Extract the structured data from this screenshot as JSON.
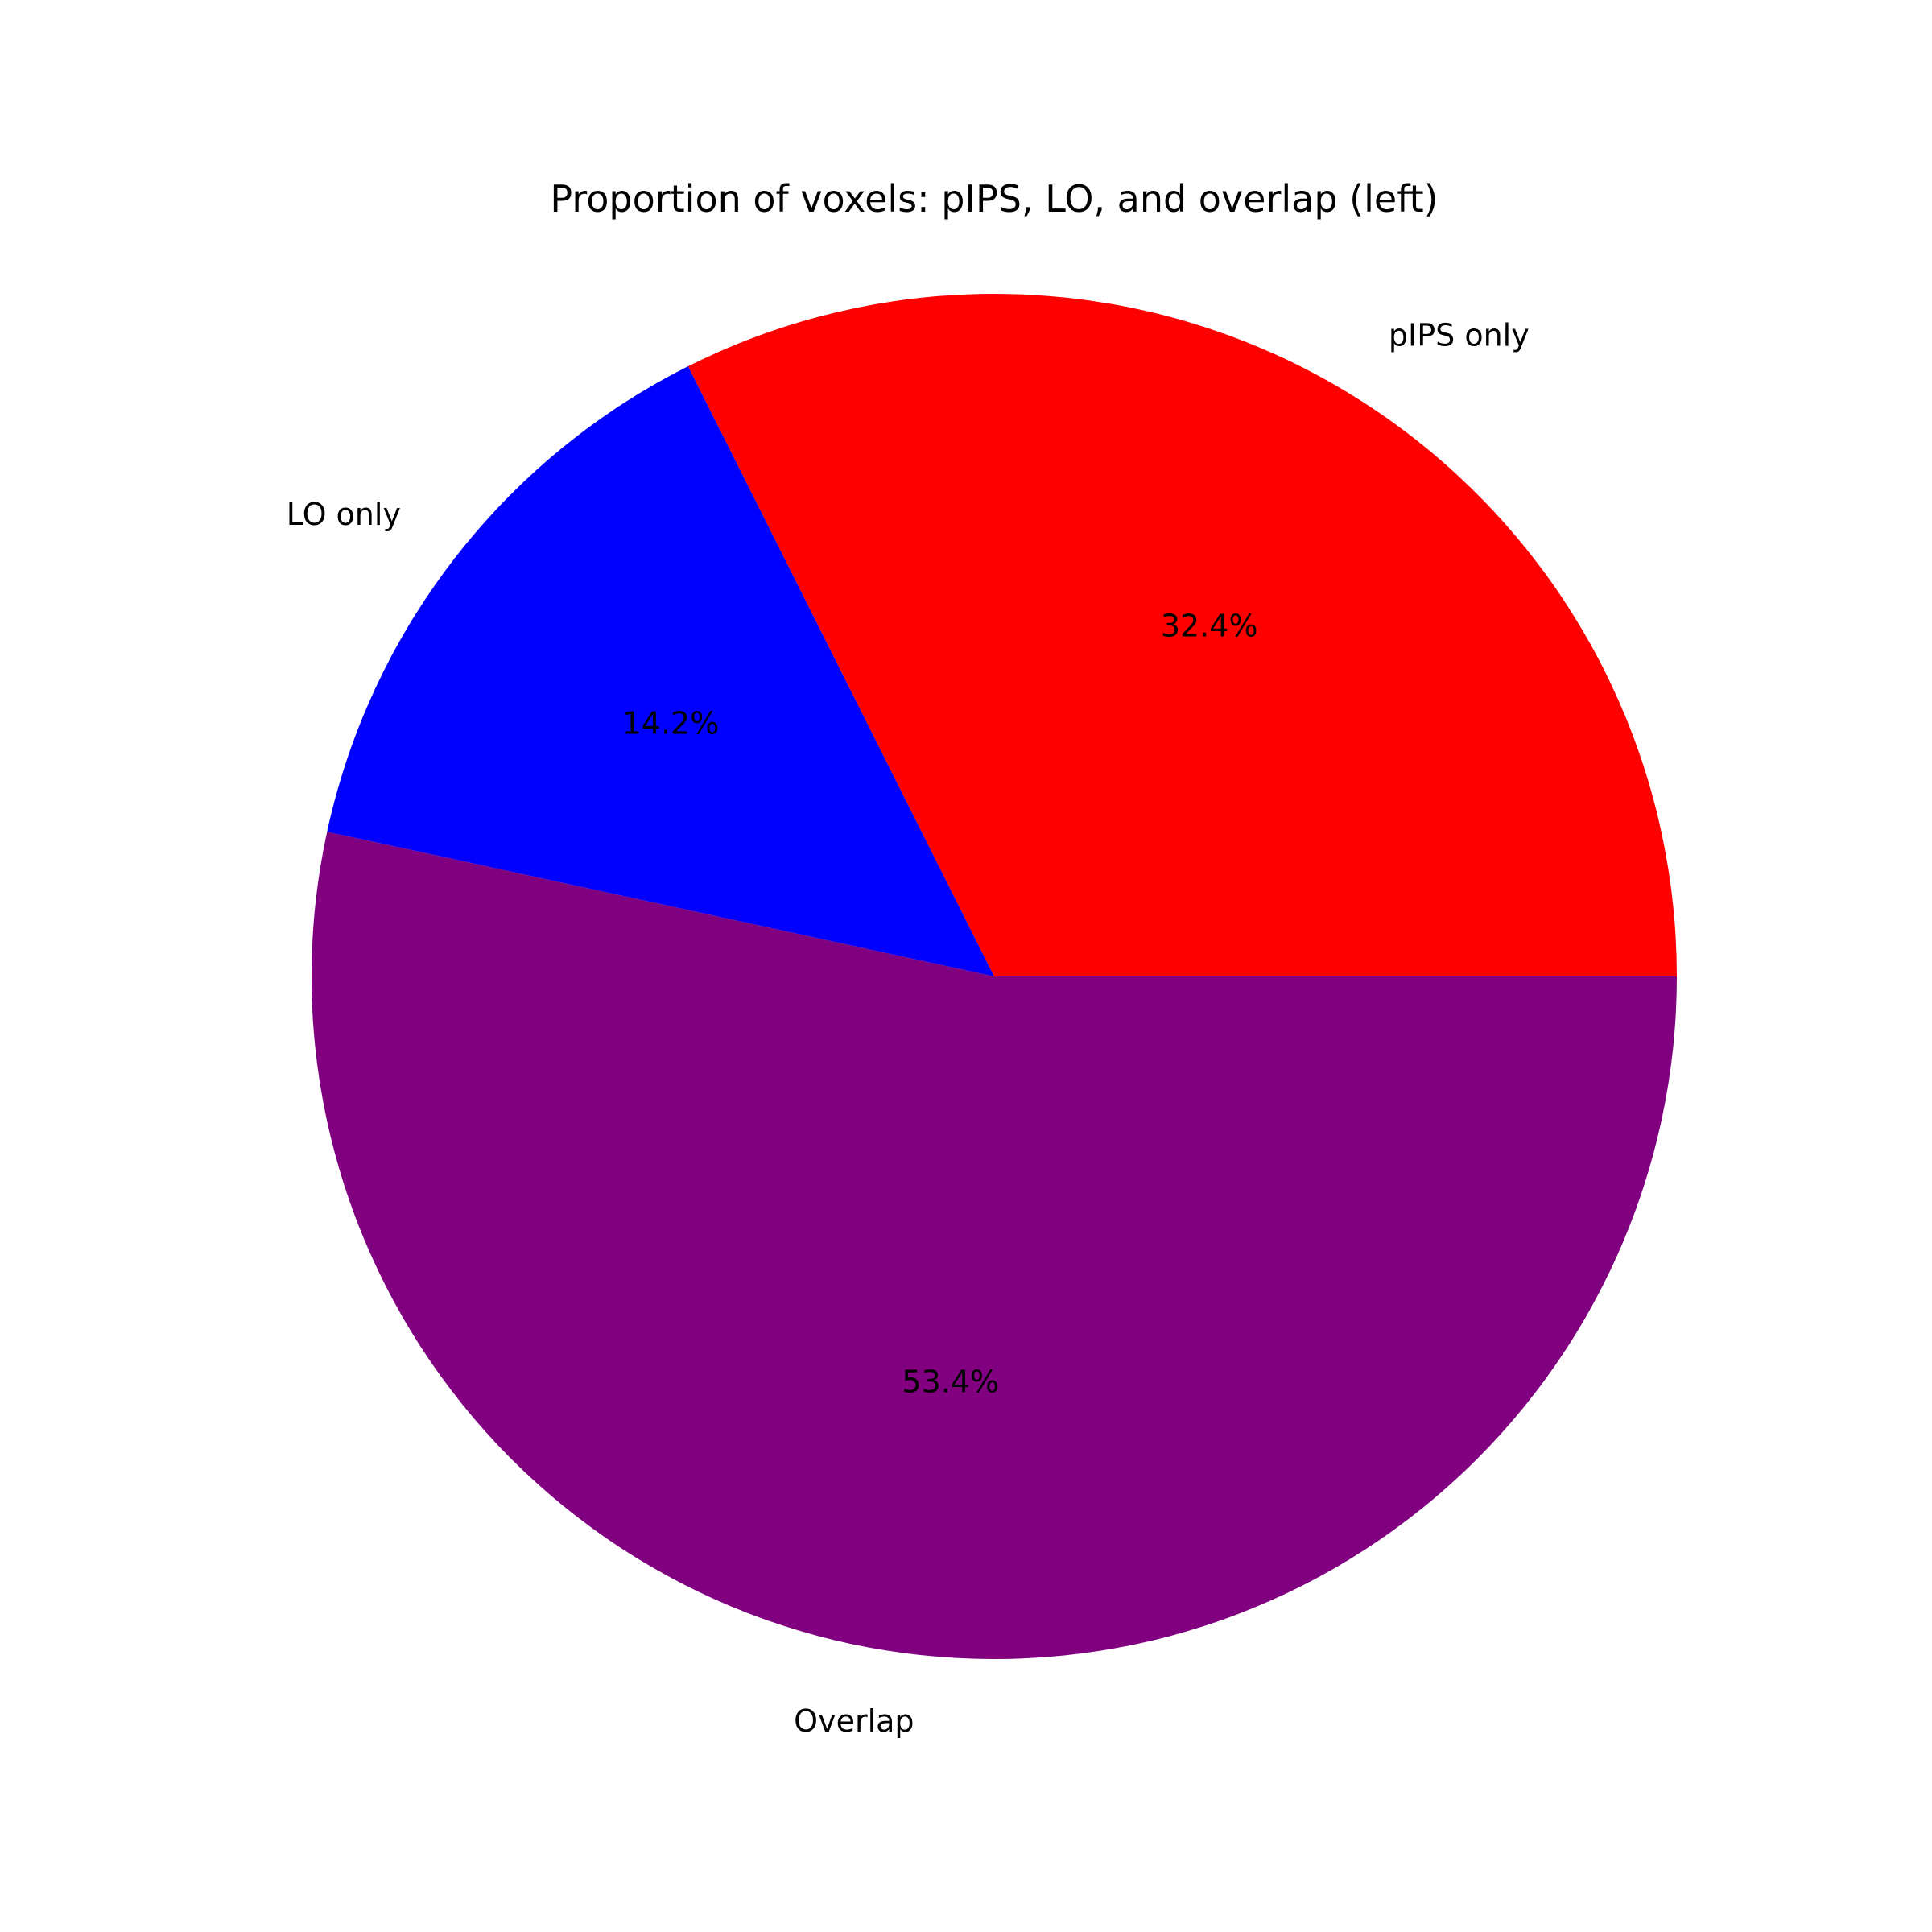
{
  "chart_data": {
    "type": "pie",
    "title": "Proportion of voxels: pIPS, LO, and overlap (left)",
    "slices": [
      {
        "label": "pIPS only",
        "value": 32.4,
        "pct_label": "32.4%",
        "color": "#ff0000"
      },
      {
        "label": "LO only",
        "value": 14.2,
        "pct_label": "14.2%",
        "color": "#0000ff"
      },
      {
        "label": "Overlap",
        "value": 53.4,
        "pct_label": "53.4%",
        "color": "#800080"
      }
    ],
    "start_angle_deg": 0,
    "direction": "counterclockwise"
  }
}
